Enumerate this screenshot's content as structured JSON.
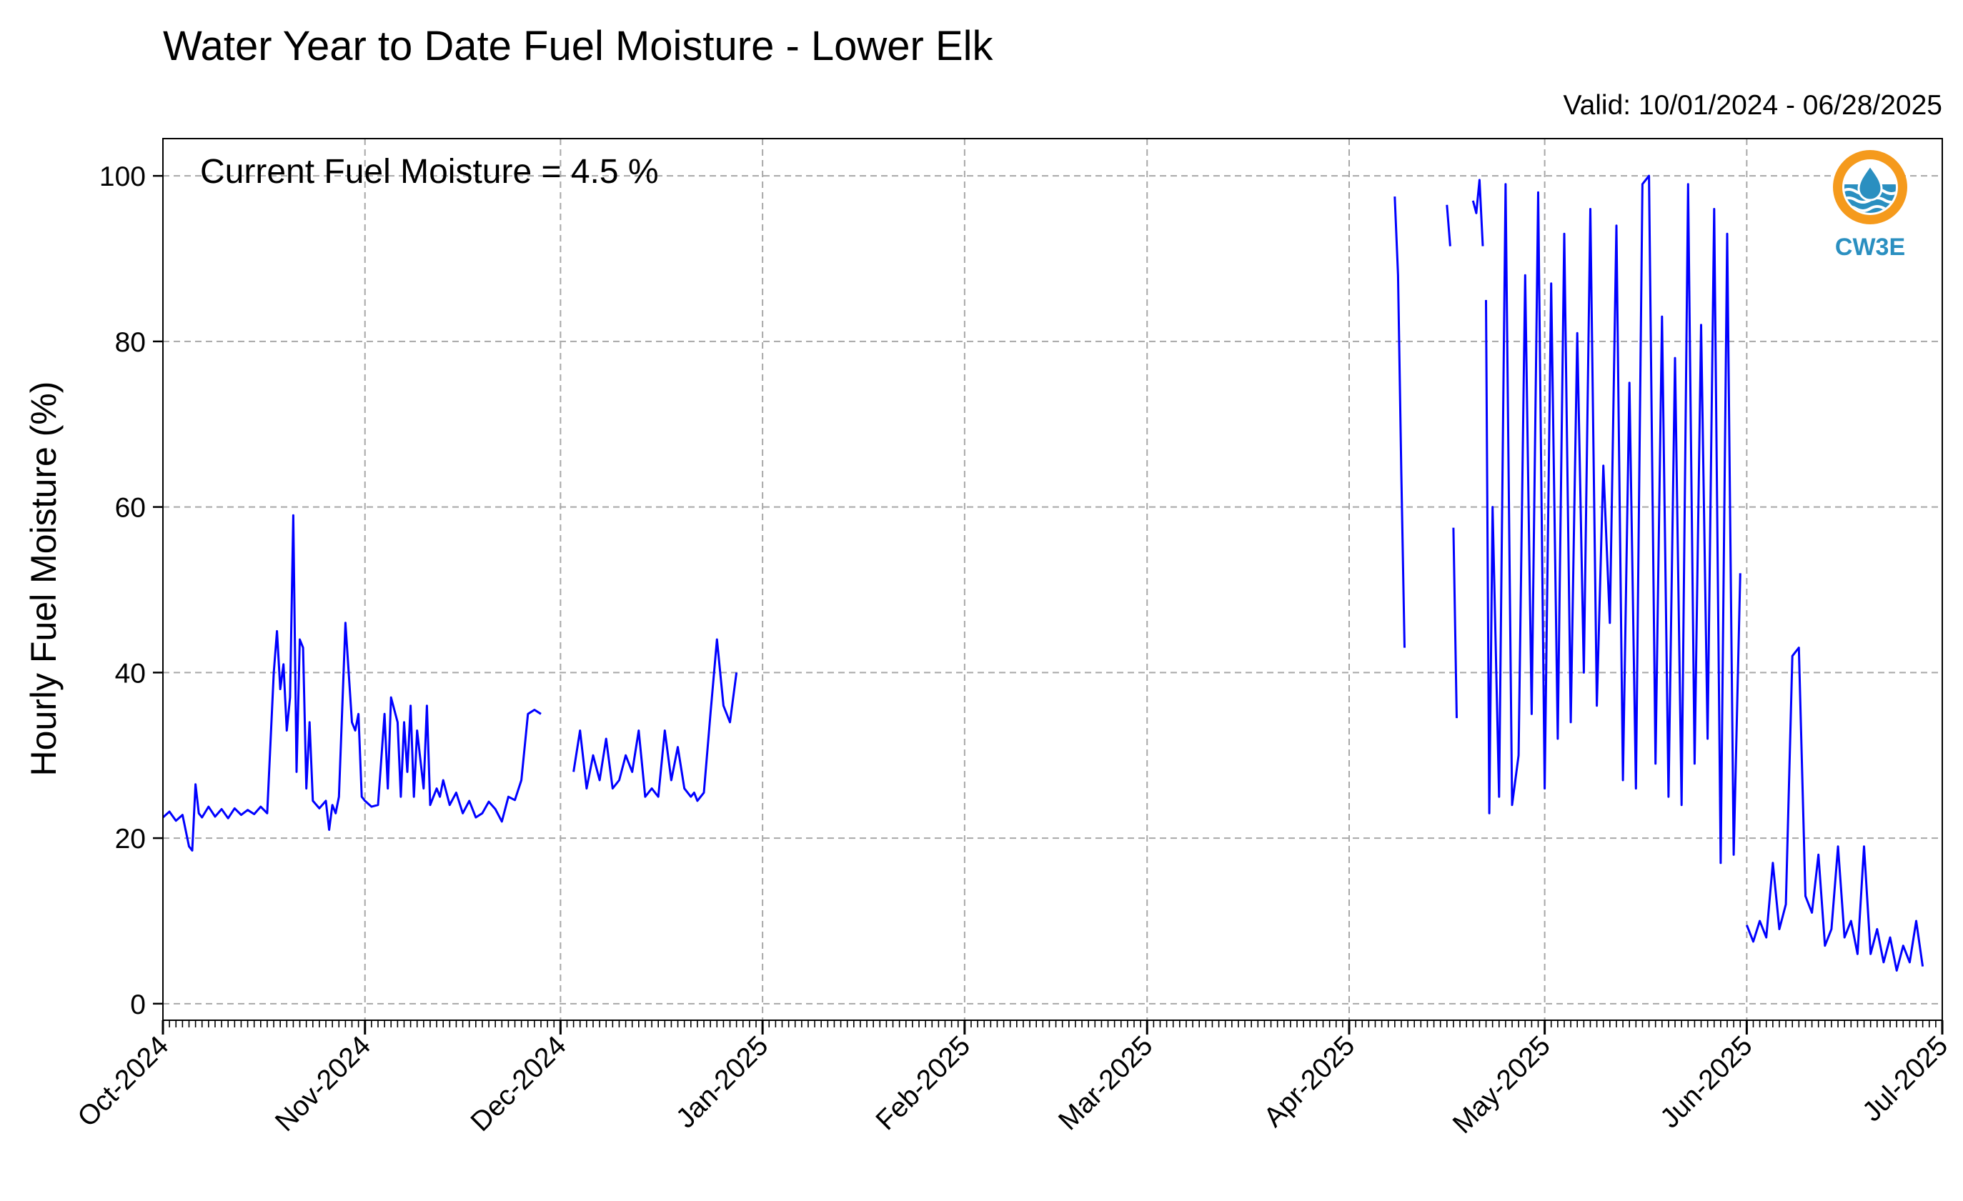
{
  "chart_data": {
    "type": "line",
    "title": "Water Year to Date Fuel Moisture - Lower Elk",
    "subtitle": "Valid: 10/01/2024 - 06/28/2025",
    "annotation": "Current Fuel Moisture = 4.5 %",
    "ylabel": "Hourly Fuel Moisture (%)",
    "xlabel": "",
    "ylim": [
      -2,
      104.5
    ],
    "y_ticks": [
      0,
      20,
      40,
      60,
      80,
      100
    ],
    "x_range": [
      "2024-10-01",
      "2025-07-01"
    ],
    "x_ticks": [
      {
        "date": "2024-10-01",
        "label": "Oct-2024"
      },
      {
        "date": "2024-11-01",
        "label": "Nov-2024"
      },
      {
        "date": "2024-12-01",
        "label": "Dec-2024"
      },
      {
        "date": "2025-01-01",
        "label": "Jan-2025"
      },
      {
        "date": "2025-02-01",
        "label": "Feb-2025"
      },
      {
        "date": "2025-03-01",
        "label": "Mar-2025"
      },
      {
        "date": "2025-04-01",
        "label": "Apr-2025"
      },
      {
        "date": "2025-05-01",
        "label": "May-2025"
      },
      {
        "date": "2025-06-01",
        "label": "Jun-2025"
      },
      {
        "date": "2025-07-01",
        "label": "Jul-2025"
      }
    ],
    "grid": true,
    "logo_text": "CW3E",
    "series": [
      {
        "color": "#0000ff",
        "segments": [
          {
            "x": [
              "2024-10-01",
              "2024-10-02",
              "2024-10-03",
              "2024-10-04",
              "2024-10-05",
              "2024-10-05",
              "2024-10-06",
              "2024-10-06",
              "2024-10-07",
              "2024-10-08",
              "2024-10-09",
              "2024-10-10",
              "2024-10-11",
              "2024-10-12",
              "2024-10-13",
              "2024-10-14",
              "2024-10-15",
              "2024-10-16",
              "2024-10-17",
              "2024-10-18",
              "2024-10-18",
              "2024-10-19",
              "2024-10-19",
              "2024-10-20",
              "2024-10-20",
              "2024-10-21",
              "2024-10-21",
              "2024-10-22",
              "2024-10-22",
              "2024-10-23",
              "2024-10-23",
              "2024-10-24",
              "2024-10-25",
              "2024-10-26",
              "2024-10-26",
              "2024-10-27",
              "2024-10-27",
              "2024-10-28",
              "2024-10-29",
              "2024-10-30",
              "2024-10-30",
              "2024-10-31",
              "2024-10-31",
              "2024-11-01",
              "2024-11-02",
              "2024-11-03",
              "2024-11-04",
              "2024-11-04",
              "2024-11-05",
              "2024-11-06",
              "2024-11-06",
              "2024-11-07",
              "2024-11-07",
              "2024-11-08",
              "2024-11-08",
              "2024-11-09",
              "2024-11-10",
              "2024-11-10",
              "2024-11-11",
              "2024-11-12",
              "2024-11-12",
              "2024-11-13",
              "2024-11-14",
              "2024-11-15",
              "2024-11-16",
              "2024-11-17",
              "2024-11-18",
              "2024-11-19",
              "2024-11-20",
              "2024-11-21",
              "2024-11-22",
              "2024-11-23",
              "2024-11-24",
              "2024-11-25",
              "2024-11-26",
              "2024-11-27",
              "2024-11-28"
            ],
            "y": [
              22.5,
              23.2,
              22.1,
              22.8,
              19,
              18.5,
              26.5,
              23,
              22.5,
              23.8,
              22.6,
              23.5,
              22.4,
              23.6,
              22.8,
              23.4,
              22.9,
              23.8,
              23,
              40,
              45,
              38,
              41,
              33,
              37,
              59,
              28,
              44,
              43,
              26,
              34,
              24.5,
              23.6,
              24.5,
              21,
              24,
              23,
              25,
              46,
              34,
              33,
              35,
              25,
              24.5,
              23.8,
              24,
              35,
              26,
              37,
              34,
              25,
              34,
              28,
              36,
              25,
              33,
              26,
              36,
              24,
              26,
              25,
              27,
              24,
              25.5,
              23,
              24.5,
              22.5,
              23,
              24.4,
              23.5,
              22,
              25,
              24.6,
              27,
              35,
              35.5,
              35
            ]
          },
          {
            "x": [
              "2024-12-03",
              "2024-12-04",
              "2024-12-05",
              "2024-12-06",
              "2024-12-07",
              "2024-12-08",
              "2024-12-09",
              "2024-12-10",
              "2024-12-11",
              "2024-12-12",
              "2024-12-13",
              "2024-12-14",
              "2024-12-15",
              "2024-12-16",
              "2024-12-17",
              "2024-12-18",
              "2024-12-19",
              "2024-12-20",
              "2024-12-21",
              "2024-12-21",
              "2024-12-22",
              "2024-12-23",
              "2024-12-24",
              "2024-12-25",
              "2024-12-26",
              "2024-12-27",
              "2024-12-28"
            ],
            "y": [
              28,
              33,
              26,
              30,
              27,
              32,
              26,
              27,
              30,
              28,
              33,
              25,
              26,
              25,
              33,
              27,
              31,
              26,
              25,
              25.5,
              24.5,
              25.5,
              35,
              44,
              36,
              34,
              40
            ]
          },
          {
            "x": [
              "2025-04-08",
              "2025-04-08",
              "2025-04-09",
              "2025-04-09"
            ],
            "y": [
              97.5,
              88,
              64,
              43
            ]
          },
          {
            "x": [
              "2025-04-16",
              "2025-04-16"
            ],
            "y": [
              96.5,
              91.5
            ]
          },
          {
            "x": [
              "2025-04-17",
              "2025-04-17"
            ],
            "y": [
              57.5,
              34.5
            ]
          },
          {
            "x": [
              "2025-04-20",
              "2025-04-20",
              "2025-04-21",
              "2025-04-21"
            ],
            "y": [
              97,
              95.5,
              99.5,
              91.5
            ]
          },
          {
            "x": [
              "2025-04-22",
              "2025-04-22",
              "2025-04-23",
              "2025-04-24",
              "2025-04-25",
              "2025-04-26",
              "2025-04-27",
              "2025-04-28",
              "2025-04-29",
              "2025-04-30",
              "2025-05-01",
              "2025-05-02",
              "2025-05-03",
              "2025-05-04",
              "2025-05-05",
              "2025-05-06",
              "2025-05-07",
              "2025-05-08",
              "2025-05-09",
              "2025-05-10",
              "2025-05-11",
              "2025-05-12",
              "2025-05-13",
              "2025-05-14",
              "2025-05-15",
              "2025-05-16",
              "2025-05-17",
              "2025-05-18",
              "2025-05-19",
              "2025-05-20",
              "2025-05-21",
              "2025-05-22",
              "2025-05-23",
              "2025-05-24",
              "2025-05-25",
              "2025-05-26",
              "2025-05-27",
              "2025-05-28",
              "2025-05-29",
              "2025-05-30",
              "2025-05-31"
            ],
            "y": [
              85,
              23,
              60,
              25,
              99,
              24,
              30,
              88,
              35,
              98,
              26,
              87,
              32,
              93,
              34,
              81,
              40,
              96,
              36,
              65,
              46,
              94,
              27,
              75,
              26,
              99,
              100,
              29,
              83,
              25,
              78,
              24,
              99,
              29,
              82,
              32,
              96,
              17,
              93,
              18,
              52
            ]
          },
          {
            "x": [
              "2025-06-01",
              "2025-06-02",
              "2025-06-03",
              "2025-06-04",
              "2025-06-05",
              "2025-06-06",
              "2025-06-07",
              "2025-06-08",
              "2025-06-09",
              "2025-06-10",
              "2025-06-11",
              "2025-06-12",
              "2025-06-13",
              "2025-06-14",
              "2025-06-15",
              "2025-06-16",
              "2025-06-17",
              "2025-06-18",
              "2025-06-19",
              "2025-06-20",
              "2025-06-21",
              "2025-06-22",
              "2025-06-23",
              "2025-06-24",
              "2025-06-25",
              "2025-06-26",
              "2025-06-27",
              "2025-06-28"
            ],
            "y": [
              9.5,
              7.5,
              10,
              8,
              17,
              9,
              12,
              42,
              43,
              13,
              11,
              18,
              7,
              9,
              19,
              8,
              10,
              6,
              19,
              6,
              9,
              5,
              8,
              4,
              7,
              5,
              10,
              4.5
            ]
          }
        ]
      }
    ]
  }
}
